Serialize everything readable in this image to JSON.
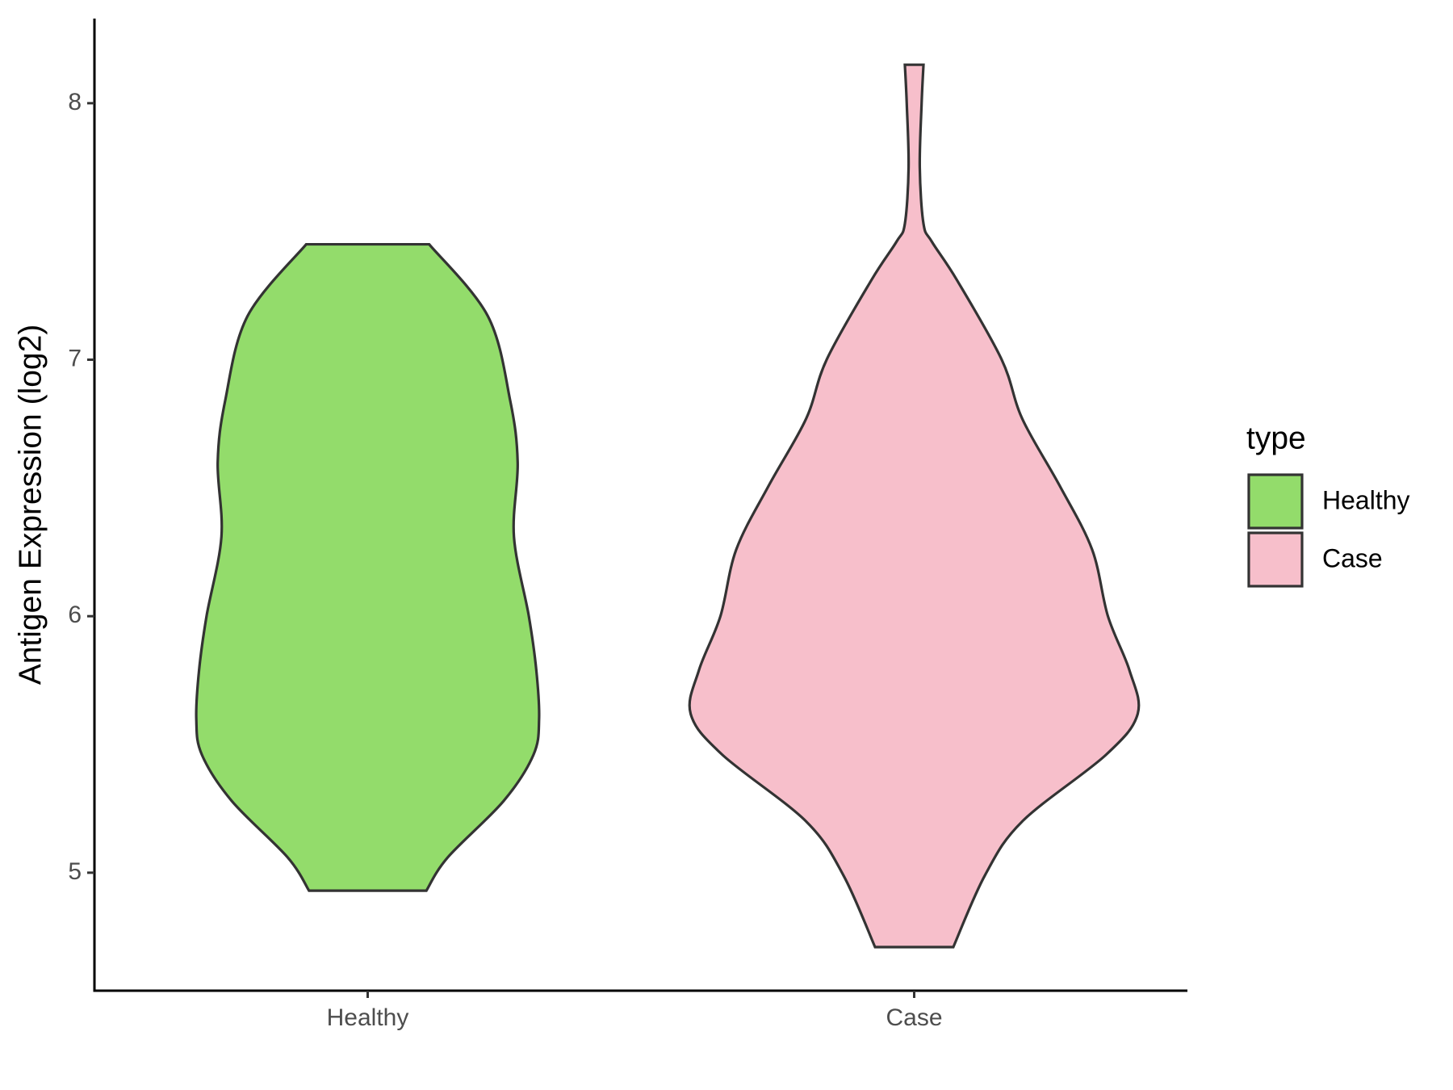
{
  "chart_data": {
    "type": "violin",
    "y_label": "Antigen Expression (log2)",
    "categories": [
      "Healthy",
      "Case"
    ],
    "legend_title": "type",
    "legend": "right",
    "series": [
      {
        "name": "Healthy",
        "color": "#93dc6b",
        "y": [
          7.45,
          7.17,
          6.84,
          6.6,
          6.31,
          6.0,
          5.79,
          5.6,
          5.46,
          5.28,
          5.06,
          4.93
        ],
        "density": [
          66,
          129,
          153,
          161,
          157,
          173,
          181,
          184,
          178,
          146,
          86,
          63
        ]
      },
      {
        "name": "Case",
        "color": "#f7bfcb",
        "y": [
          8.15,
          8.0,
          7.75,
          7.53,
          7.46,
          7.31,
          7.0,
          6.77,
          6.51,
          6.26,
          6.0,
          5.79,
          5.62,
          5.46,
          5.2,
          4.99,
          4.71
        ],
        "density": [
          10,
          8,
          6,
          10,
          19,
          46,
          94,
          116,
          156,
          191,
          208,
          231,
          240,
          206,
          116,
          76,
          42
        ]
      }
    ],
    "ylim": [
      4.54,
      8.33
    ],
    "yticks": [
      5,
      6,
      7,
      8
    ]
  }
}
